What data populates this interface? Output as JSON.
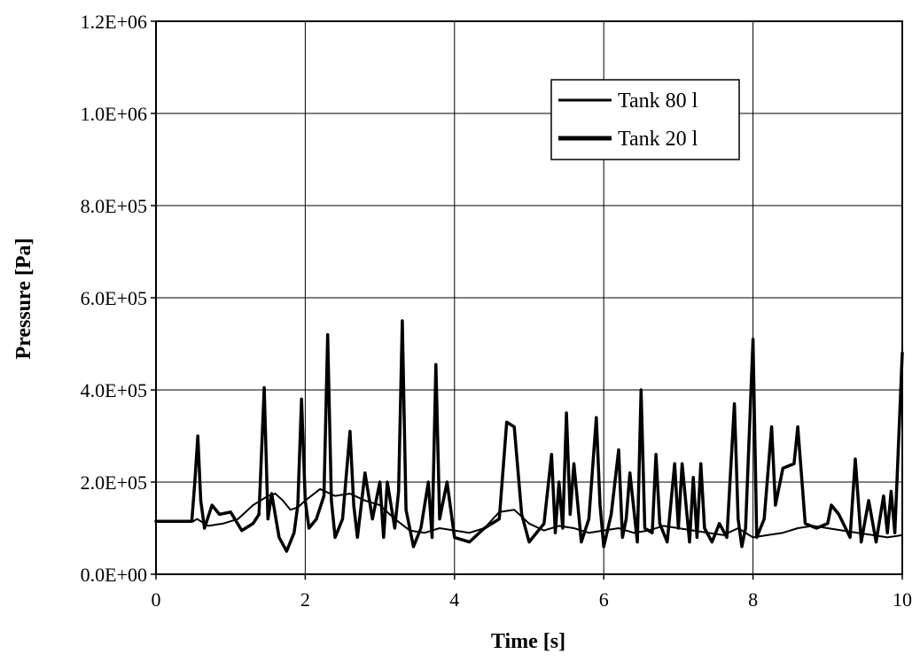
{
  "chart_data": {
    "type": "line",
    "title": "",
    "xlabel": "Time [s]",
    "ylabel": "Pressure [Pa]",
    "xlim": [
      0,
      10
    ],
    "ylim": [
      0,
      1200000
    ],
    "grid": true,
    "legend_position": "top-right",
    "x_ticks": [
      0,
      2,
      4,
      6,
      8,
      10
    ],
    "x_tick_labels": [
      "0",
      "2",
      "4",
      "6",
      "8",
      "10"
    ],
    "y_ticks": [
      0,
      200000,
      400000,
      600000,
      800000,
      1000000,
      1200000
    ],
    "y_tick_labels": [
      "0.0E+00",
      "2.0E+05",
      "4.0E+05",
      "6.0E+05",
      "8.0E+05",
      "1.0E+06",
      "1.2E+06"
    ],
    "series": [
      {
        "name": "Tank 80 l",
        "color": "#000000",
        "line_width": 2,
        "x": [
          0,
          0.5,
          0.55,
          0.6,
          0.7,
          0.9,
          1.1,
          1.3,
          1.5,
          1.6,
          1.7,
          1.8,
          1.9,
          2.0,
          2.2,
          2.4,
          2.6,
          2.8,
          3.0,
          3.2,
          3.4,
          3.6,
          3.8,
          4.0,
          4.2,
          4.4,
          4.6,
          4.8,
          5.0,
          5.2,
          5.4,
          5.6,
          5.8,
          6.0,
          6.2,
          6.4,
          6.6,
          6.8,
          7.0,
          7.2,
          7.4,
          7.6,
          7.8,
          8.0,
          8.2,
          8.4,
          8.6,
          8.8,
          9.0,
          9.2,
          9.4,
          9.6,
          9.8,
          10.0
        ],
        "y": [
          115000,
          115000,
          120000,
          115000,
          105000,
          110000,
          120000,
          150000,
          170000,
          175000,
          160000,
          140000,
          145000,
          160000,
          185000,
          170000,
          175000,
          160000,
          150000,
          120000,
          95000,
          90000,
          100000,
          95000,
          90000,
          100000,
          135000,
          140000,
          110000,
          95000,
          105000,
          100000,
          90000,
          95000,
          100000,
          90000,
          95000,
          105000,
          100000,
          95000,
          90000,
          85000,
          100000,
          80000,
          85000,
          90000,
          100000,
          105000,
          100000,
          95000,
          90000,
          85000,
          80000,
          85000
        ]
      },
      {
        "name": "Tank 20 l",
        "color": "#000000",
        "line_width": 3.5,
        "x": [
          0,
          0.48,
          0.52,
          0.56,
          0.6,
          0.65,
          0.75,
          0.85,
          1.0,
          1.15,
          1.3,
          1.38,
          1.45,
          1.5,
          1.55,
          1.65,
          1.75,
          1.85,
          1.9,
          1.95,
          2.0,
          2.05,
          2.15,
          2.25,
          2.3,
          2.35,
          2.4,
          2.5,
          2.6,
          2.65,
          2.7,
          2.8,
          2.9,
          3.0,
          3.05,
          3.1,
          3.2,
          3.25,
          3.3,
          3.35,
          3.45,
          3.55,
          3.65,
          3.7,
          3.75,
          3.8,
          3.9,
          4.0,
          4.2,
          4.4,
          4.6,
          4.7,
          4.8,
          4.9,
          5.0,
          5.2,
          5.3,
          5.35,
          5.4,
          5.45,
          5.5,
          5.55,
          5.6,
          5.7,
          5.8,
          5.9,
          5.95,
          6.0,
          6.1,
          6.2,
          6.25,
          6.3,
          6.35,
          6.45,
          6.5,
          6.55,
          6.65,
          6.7,
          6.75,
          6.85,
          6.95,
          7.0,
          7.05,
          7.15,
          7.2,
          7.25,
          7.3,
          7.35,
          7.45,
          7.55,
          7.65,
          7.75,
          7.8,
          7.85,
          7.9,
          8.0,
          8.05,
          8.15,
          8.25,
          8.3,
          8.4,
          8.55,
          8.6,
          8.7,
          8.85,
          9.0,
          9.05,
          9.15,
          9.3,
          9.37,
          9.45,
          9.55,
          9.65,
          9.75,
          9.8,
          9.85,
          9.9,
          10.0
        ],
        "y": [
          115000,
          115000,
          200000,
          300000,
          160000,
          100000,
          150000,
          130000,
          135000,
          95000,
          110000,
          130000,
          405000,
          120000,
          175000,
          80000,
          50000,
          90000,
          150000,
          380000,
          160000,
          100000,
          120000,
          170000,
          520000,
          160000,
          80000,
          120000,
          310000,
          150000,
          80000,
          220000,
          120000,
          200000,
          80000,
          200000,
          100000,
          180000,
          550000,
          140000,
          60000,
          100000,
          200000,
          80000,
          455000,
          120000,
          200000,
          80000,
          70000,
          100000,
          120000,
          330000,
          320000,
          130000,
          70000,
          110000,
          260000,
          90000,
          200000,
          100000,
          350000,
          130000,
          240000,
          70000,
          120000,
          340000,
          150000,
          60000,
          130000,
          270000,
          80000,
          120000,
          220000,
          70000,
          400000,
          100000,
          90000,
          260000,
          110000,
          70000,
          240000,
          100000,
          240000,
          70000,
          210000,
          80000,
          240000,
          100000,
          70000,
          110000,
          80000,
          370000,
          120000,
          60000,
          100000,
          510000,
          80000,
          120000,
          320000,
          150000,
          230000,
          240000,
          320000,
          110000,
          100000,
          110000,
          150000,
          130000,
          80000,
          250000,
          70000,
          160000,
          70000,
          170000,
          90000,
          180000,
          90000,
          480000
        ]
      }
    ]
  }
}
